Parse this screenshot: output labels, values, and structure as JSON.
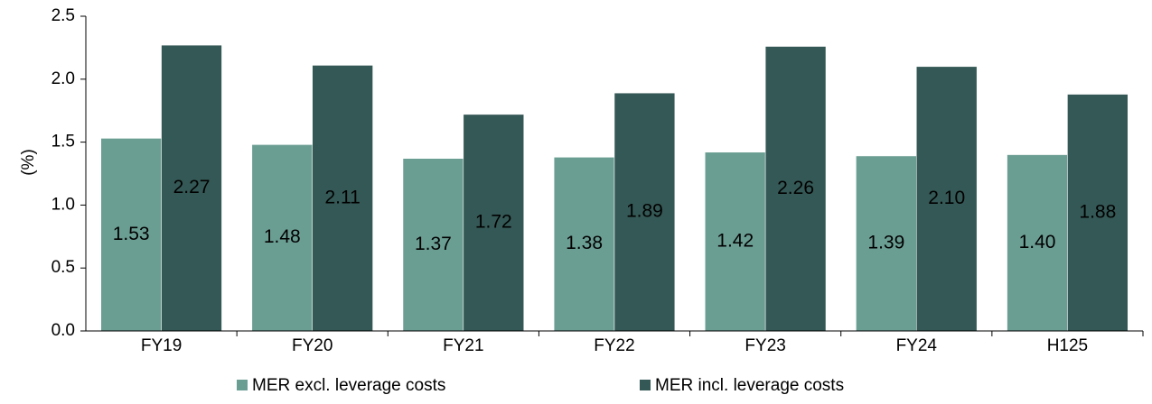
{
  "chart_data": {
    "type": "bar",
    "y_label": "(%)",
    "categories": [
      "FY19",
      "FY20",
      "FY21",
      "FY22",
      "FY23",
      "FY24",
      "H125"
    ],
    "series": [
      {
        "name": "MER excl. leverage costs",
        "color": "#6b9e93",
        "values": [
          1.53,
          1.48,
          1.37,
          1.38,
          1.42,
          1.39,
          1.4
        ],
        "value_labels": [
          "1.53",
          "1.48",
          "1.37",
          "1.38",
          "1.42",
          "1.39",
          "1.40"
        ]
      },
      {
        "name": "MER incl. leverage costs",
        "color": "#345855",
        "values": [
          2.27,
          2.11,
          1.72,
          1.89,
          2.26,
          2.1,
          1.88
        ],
        "value_labels": [
          "2.27",
          "2.11",
          "1.72",
          "1.89",
          "2.26",
          "2.10",
          "1.88"
        ]
      }
    ],
    "ylim": [
      0,
      2.5
    ],
    "yticks": [
      {
        "value": 0,
        "label": "0.0"
      },
      0.5,
      {
        "value": 1,
        "label": "1.0"
      },
      1.5,
      {
        "value": 2,
        "label": "2.0"
      },
      2.5
    ],
    "grid": false,
    "legend": "bottom"
  }
}
